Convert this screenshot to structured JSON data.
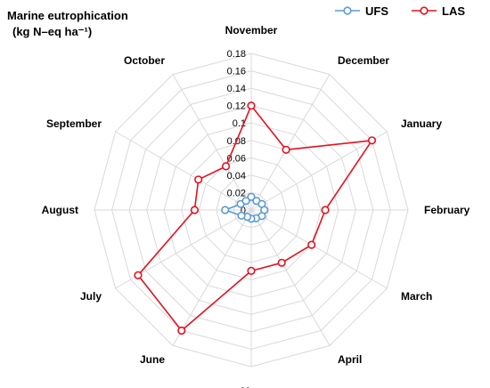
{
  "chart_data": {
    "type": "radar",
    "title_lines": [
      "Marine eutrophication",
      "(kg N–eq ha⁻¹)"
    ],
    "categories": [
      "November",
      "December",
      "January",
      "February",
      "March",
      "April",
      "May",
      "June",
      "July",
      "August",
      "September",
      "October"
    ],
    "tick_values": [
      0,
      0.02,
      0.04,
      0.06,
      0.08,
      0.1,
      0.12,
      0.14,
      0.16,
      0.18
    ],
    "tick_labels": [
      "0",
      "0.02",
      "0.04",
      "0.06",
      "0.08",
      "0.1",
      "0.12",
      "0.14",
      "0.16",
      "0.18"
    ],
    "rmax": 0.18,
    "grid": true,
    "legend_position": "top-right",
    "series": [
      {
        "name": "UFS",
        "color": "#5b9bd5",
        "values": [
          0.015,
          0.012,
          0.014,
          0.015,
          0.014,
          0.011,
          0.01,
          0.009,
          0.013,
          0.03,
          0.014,
          0.012
        ]
      },
      {
        "name": "LAS",
        "color": "#e8101e",
        "values": [
          0.12,
          0.08,
          0.16,
          0.085,
          0.08,
          0.07,
          0.07,
          0.16,
          0.15,
          0.065,
          0.07,
          0.058
        ]
      }
    ]
  }
}
